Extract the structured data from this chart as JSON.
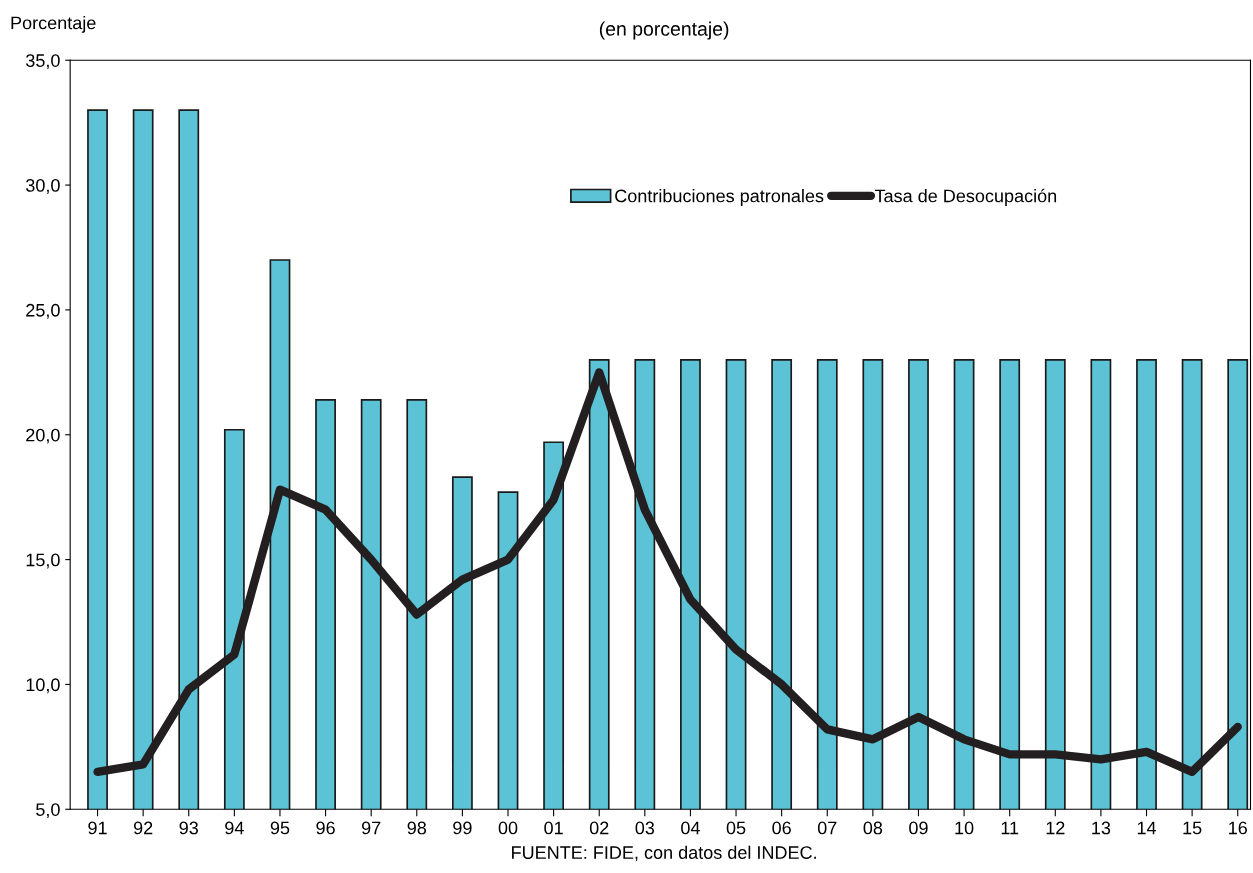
{
  "chart_data": {
    "type": "bar",
    "subtitle": "(en porcentaje)",
    "ylabel": "Porcentaje",
    "categories": [
      "91",
      "92",
      "93",
      "94",
      "95",
      "96",
      "97",
      "98",
      "99",
      "00",
      "01",
      "02",
      "03",
      "04",
      "05",
      "06",
      "07",
      "08",
      "09",
      "10",
      "11",
      "12",
      "13",
      "14",
      "15",
      "16"
    ],
    "series": [
      {
        "name": "Contribuciones patronales",
        "color": "#5bc3d5",
        "values": [
          33.0,
          33.0,
          33.0,
          20.2,
          27.0,
          21.4,
          21.4,
          21.4,
          18.3,
          17.7,
          19.7,
          23.0,
          23.0,
          23.0,
          23.0,
          23.0,
          23.0,
          23.0,
          23.0,
          23.0,
          23.0,
          23.0,
          23.0,
          23.0,
          23.0,
          23.0
        ]
      },
      {
        "name": "Tasa de Desocupación",
        "type": "line",
        "color": "#231f20",
        "values": [
          6.5,
          6.8,
          9.8,
          11.2,
          17.8,
          17.0,
          15.0,
          12.8,
          14.2,
          15.0,
          17.4,
          22.5,
          17.0,
          13.4,
          11.4,
          10.0,
          8.2,
          7.8,
          8.7,
          7.8,
          7.2,
          7.2,
          7.0,
          7.3,
          6.5,
          8.3
        ]
      }
    ],
    "ylim": [
      5,
      35
    ],
    "yticks": [
      {
        "value": 5,
        "label": "5,0"
      },
      {
        "value": 10,
        "label": "10,0"
      },
      {
        "value": 15,
        "label": "15,0"
      },
      {
        "value": 20,
        "label": "20,0"
      },
      {
        "value": 25,
        "label": "25,0"
      },
      {
        "value": 30,
        "label": "30,0"
      },
      {
        "value": 35,
        "label": "35,0"
      }
    ],
    "grid": false,
    "legend": "top right",
    "marker": "none",
    "line_style": "solid",
    "annotations": [
      "FUENTE: FIDE, con datos del INDEC."
    ]
  }
}
